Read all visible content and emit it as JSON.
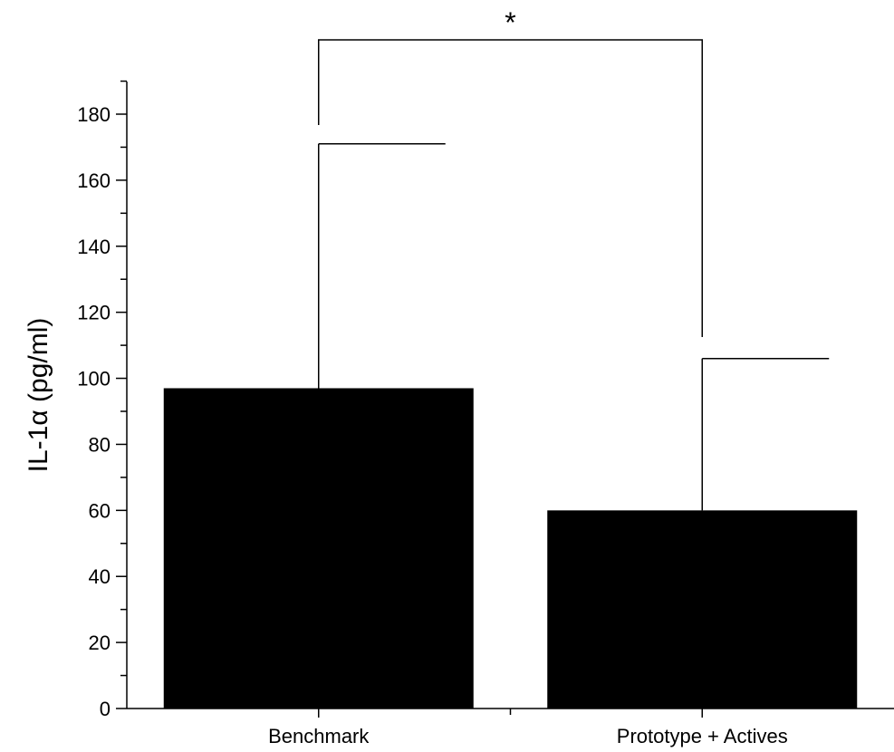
{
  "chart_data": {
    "type": "bar",
    "categories": [
      "Benchmark",
      "Prototype + Actives"
    ],
    "values": [
      97,
      60
    ],
    "error_upper": [
      171,
      106
    ],
    "title": "",
    "xlabel": "",
    "ylabel": "IL-1α (pg/ml)",
    "ylim": [
      0,
      190
    ],
    "yticks": [
      0,
      20,
      40,
      60,
      80,
      100,
      120,
      140,
      160,
      180
    ],
    "grid": false,
    "bar_color": "#000000",
    "significance": {
      "between": [
        0,
        1
      ],
      "label": "*"
    }
  }
}
